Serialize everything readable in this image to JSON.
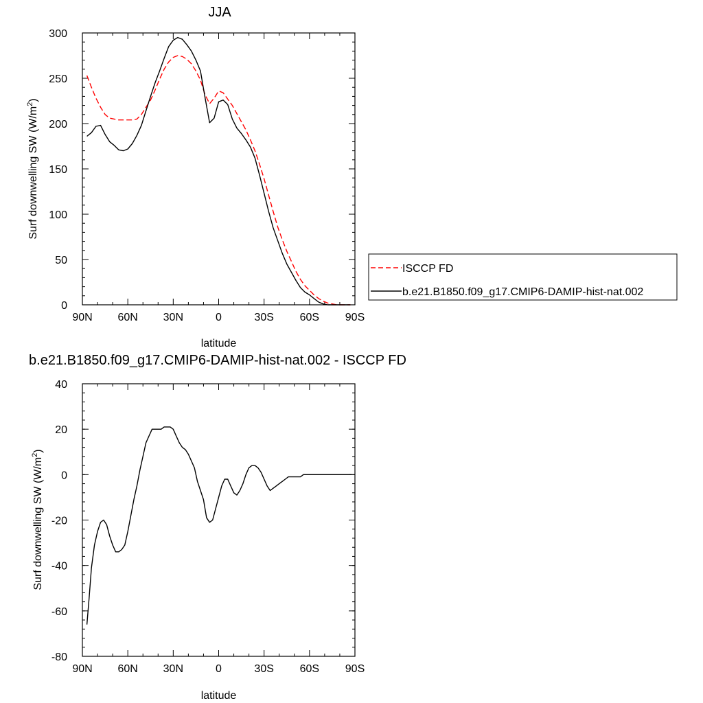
{
  "chart_data": [
    {
      "type": "line",
      "title": "JJA",
      "xlabel": "latitude",
      "ylabel": "Surf downwelling SW (W/m²)",
      "ylabel_main": "Surf downwelling SW (W/m",
      "ylabel_sup": "2",
      "ylabel_end": ")",
      "xlim": [
        90,
        -90
      ],
      "ylim": [
        0,
        300
      ],
      "xticks": [
        90,
        60,
        30,
        0,
        -30,
        -60,
        -90
      ],
      "xtick_labels": [
        "90N",
        "60N",
        "30N",
        "0",
        "30S",
        "60S",
        "90S"
      ],
      "yticks": [
        0,
        50,
        100,
        150,
        200,
        250,
        300
      ],
      "ytick_labels": [
        "0",
        "50",
        "100",
        "150",
        "200",
        "250",
        "300"
      ],
      "grid": false,
      "legend_position": "right",
      "series": [
        {
          "name": "ISCCP FD",
          "color": "#ff0000",
          "dash": "dashed",
          "x": [
            87,
            84,
            81,
            78,
            75,
            72,
            69,
            66,
            63,
            60,
            57,
            54,
            51,
            48,
            45,
            42,
            39,
            36,
            33,
            30,
            27,
            24,
            21,
            18,
            15,
            12,
            9,
            6,
            3,
            0,
            -3,
            -6,
            -9,
            -12,
            -15,
            -18,
            -21,
            -24,
            -27,
            -30,
            -33,
            -36,
            -39,
            -42,
            -45,
            -48,
            -51,
            -54,
            -57,
            -60,
            -63,
            -66,
            -69,
            -72,
            -75,
            -78,
            -81,
            -84,
            -87
          ],
          "y": [
            253,
            240,
            228,
            218,
            210,
            206,
            205,
            204,
            204,
            204,
            204,
            205,
            210,
            218,
            226,
            237,
            249,
            260,
            268,
            273,
            275,
            274,
            271,
            266,
            258,
            248,
            232,
            222,
            228,
            236,
            234,
            227,
            220,
            211,
            202,
            193,
            182,
            170,
            155,
            139,
            121,
            103,
            86,
            72,
            59,
            48,
            37,
            28,
            21,
            16,
            11,
            7,
            4,
            2,
            1,
            0,
            0,
            0,
            0
          ]
        },
        {
          "name": "b.e21.B1850.f09_g17.CMIP6-DAMIP-hist-nat.002",
          "color": "#000000",
          "dash": "solid",
          "x": [
            87,
            84,
            81,
            78,
            75,
            72,
            69,
            66,
            63,
            60,
            57,
            54,
            51,
            48,
            45,
            42,
            39,
            36,
            33,
            30,
            27,
            24,
            21,
            18,
            15,
            12,
            9,
            6,
            3,
            0,
            -3,
            -6,
            -9,
            -12,
            -15,
            -18,
            -21,
            -24,
            -27,
            -30,
            -33,
            -36,
            -39,
            -42,
            -45,
            -48,
            -51,
            -54,
            -57,
            -60,
            -63,
            -66,
            -69,
            -72,
            -75,
            -78,
            -81,
            -84,
            -87
          ],
          "y": [
            186,
            190,
            197,
            198,
            188,
            180,
            176,
            171,
            170,
            172,
            178,
            187,
            198,
            214,
            230,
            245,
            258,
            272,
            285,
            292,
            295,
            293,
            287,
            280,
            270,
            258,
            229,
            201,
            206,
            224,
            226,
            221,
            205,
            195,
            189,
            182,
            174,
            162,
            143,
            123,
            103,
            85,
            71,
            57,
            45,
            36,
            27,
            19,
            14,
            11,
            7,
            3,
            1,
            0,
            0,
            0,
            0,
            0,
            0
          ]
        }
      ]
    },
    {
      "type": "line",
      "title": "b.e21.B1850.f09_g17.CMIP6-DAMIP-hist-nat.002 - ISCCP FD",
      "xlabel": "latitude",
      "ylabel": "Surf downwelling SW (W/m²)",
      "ylabel_main": "Surf downwelling SW (W/m",
      "ylabel_sup": "2",
      "ylabel_end": ")",
      "xlim": [
        90,
        -90
      ],
      "ylim": [
        -80,
        40
      ],
      "xticks": [
        90,
        60,
        30,
        0,
        -30,
        -60,
        -90
      ],
      "xtick_labels": [
        "90N",
        "60N",
        "30N",
        "0",
        "30S",
        "60S",
        "90S"
      ],
      "yticks": [
        -80,
        -60,
        -40,
        -20,
        0,
        20,
        40
      ],
      "ytick_labels": [
        "-80",
        "-60",
        "-40",
        "-20",
        "0",
        "20",
        "40"
      ],
      "grid": false,
      "series": [
        {
          "color": "#000000",
          "dash": "solid",
          "x": [
            87,
            85.5,
            84,
            82,
            80,
            78,
            76,
            74,
            72,
            70,
            68,
            66,
            64,
            62,
            60,
            58,
            56,
            54,
            52,
            50,
            48,
            46,
            44,
            42,
            40,
            38,
            36,
            34,
            32,
            30,
            28,
            26,
            24,
            22,
            20,
            18,
            16,
            14,
            12,
            10,
            8,
            6,
            4,
            2,
            0,
            -2,
            -4,
            -6,
            -8,
            -10,
            -12,
            -14,
            -16,
            -18,
            -20,
            -22,
            -24,
            -26,
            -28,
            -30,
            -32,
            -34,
            -36,
            -38,
            -40,
            -42,
            -44,
            -46,
            -48,
            -50,
            -52,
            -54,
            -56,
            -58,
            -60,
            -62,
            -64,
            -66,
            -68,
            -70,
            -72,
            -74,
            -76,
            -78,
            -80,
            -82,
            -84,
            -86,
            -88
          ],
          "y": [
            -66,
            -54,
            -41,
            -31,
            -25,
            -21,
            -20,
            -22,
            -27,
            -31,
            -34,
            -34,
            -33,
            -31,
            -25,
            -18,
            -11,
            -5,
            2,
            8,
            14,
            17,
            20,
            20,
            20,
            20,
            21,
            21,
            21,
            20,
            17,
            14,
            12,
            11,
            9,
            6,
            3,
            -3,
            -7,
            -11,
            -19,
            -21,
            -20,
            -15,
            -10,
            -5,
            -2,
            -2,
            -5,
            -8,
            -9,
            -7,
            -4,
            0,
            3,
            4,
            4,
            3,
            1,
            -2,
            -5,
            -7,
            -6,
            -5,
            -4,
            -3,
            -2,
            -1,
            -1,
            -1,
            -1,
            -1,
            0,
            0,
            0,
            0,
            0,
            0,
            0,
            0,
            0,
            0,
            0,
            0,
            0,
            0,
            0,
            0,
            0
          ]
        }
      ]
    }
  ],
  "legend": [
    {
      "label": "ISCCP FD",
      "color": "#ff0000",
      "dash": "dashed"
    },
    {
      "label": "b.e21.B1850.f09_g17.CMIP6-DAMIP-hist-nat.002",
      "color": "#000000",
      "dash": "solid"
    }
  ]
}
